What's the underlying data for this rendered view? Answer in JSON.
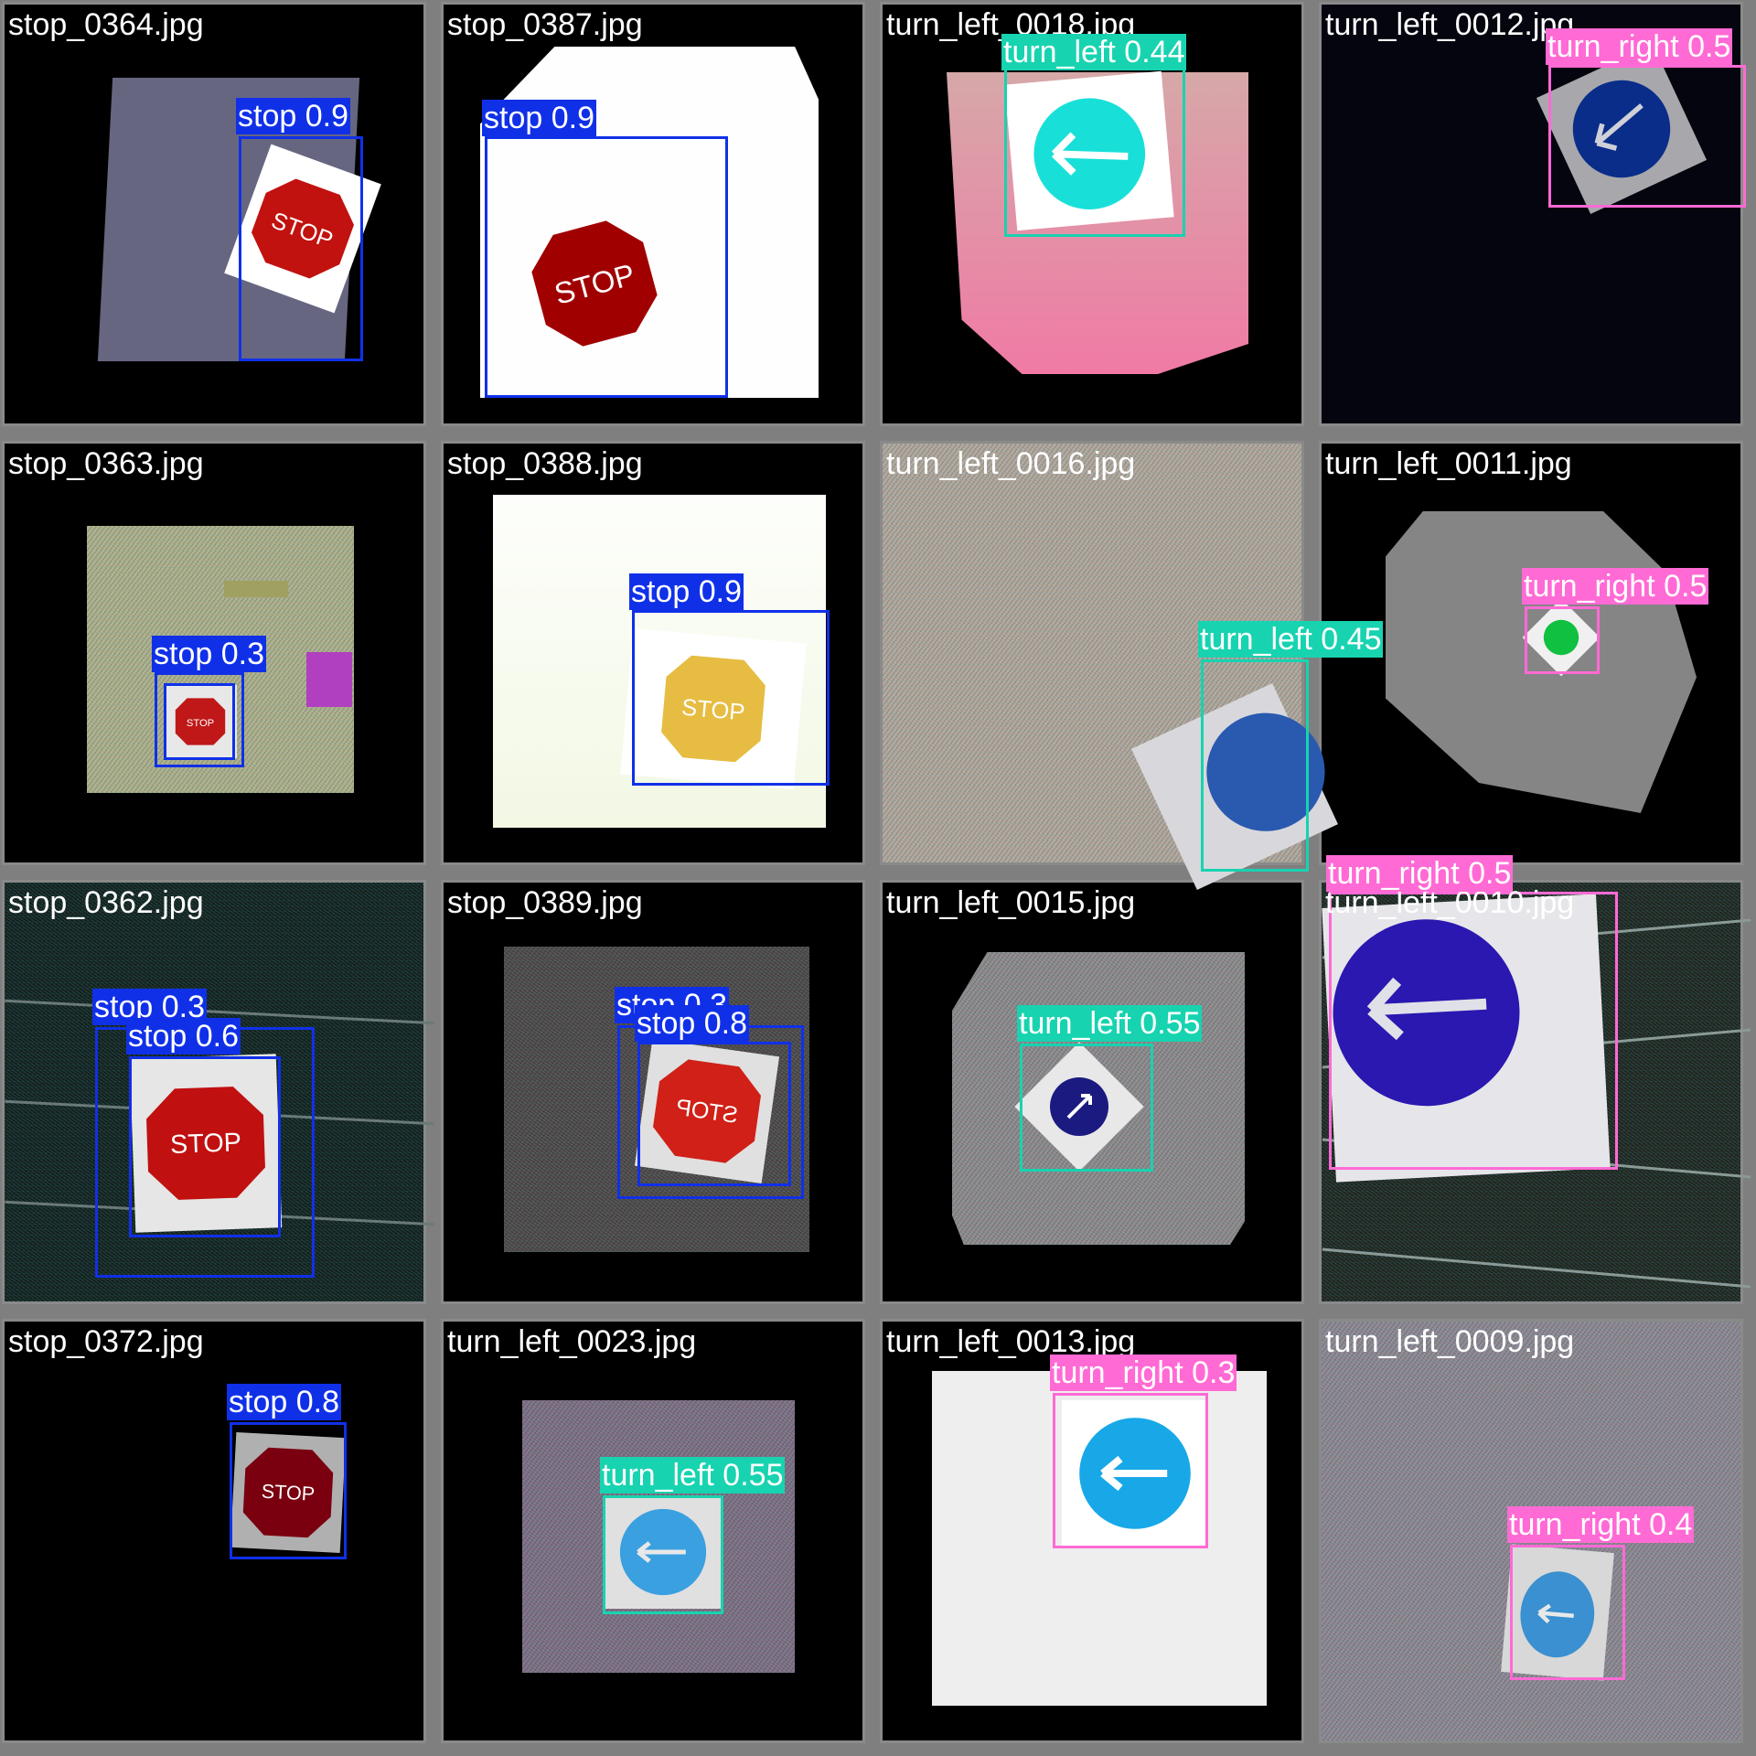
{
  "colors": {
    "stop": "#1030e8",
    "turn_left": "#17d3b0",
    "turn_right": "#ff6ad5",
    "tile_border": "#8a8a8a",
    "label_text": "#ffffff"
  },
  "tiles": [
    {
      "filename": "stop_0364.jpg",
      "detections": [
        {
          "label": "stop 0.9",
          "class": "stop"
        }
      ]
    },
    {
      "filename": "stop_0387.jpg",
      "detections": [
        {
          "label": "stop 0.9",
          "class": "stop"
        }
      ]
    },
    {
      "filename": "turn_left_0018.jpg",
      "detections": [
        {
          "label": "turn_left 0.44",
          "class": "turn_left"
        }
      ]
    },
    {
      "filename": "turn_left_0012.jpg",
      "detections": [
        {
          "label": "turn_right 0.5",
          "class": "turn_right"
        }
      ]
    },
    {
      "filename": "stop_0363.jpg",
      "detections": [
        {
          "label": "stop 0.3",
          "class": "stop"
        },
        {
          "label": "",
          "class": "stop"
        }
      ]
    },
    {
      "filename": "stop_0388.jpg",
      "detections": [
        {
          "label": "stop 0.9",
          "class": "stop"
        }
      ]
    },
    {
      "filename": "turn_left_0016.jpg",
      "detections": [
        {
          "label": "turn_left 0.45",
          "class": "turn_left"
        }
      ]
    },
    {
      "filename": "turn_left_0011.jpg",
      "detections": [
        {
          "label": "turn_right 0.5",
          "class": "turn_right"
        }
      ]
    },
    {
      "filename": "stop_0362.jpg",
      "detections": [
        {
          "label": "stop 0.3",
          "class": "stop"
        },
        {
          "label": "stop 0.6",
          "class": "stop"
        }
      ]
    },
    {
      "filename": "stop_0389.jpg",
      "detections": [
        {
          "label": "stop 0.3",
          "class": "stop"
        },
        {
          "label": "stop 0.8",
          "class": "stop"
        }
      ]
    },
    {
      "filename": "turn_left_0015.jpg",
      "detections": [
        {
          "label": "turn_left 0.55",
          "class": "turn_left"
        }
      ]
    },
    {
      "filename": "turn_left_0010.jpg",
      "detections": [
        {
          "label": "turn_right 0.5",
          "class": "turn_right"
        }
      ]
    },
    {
      "filename": "stop_0372.jpg",
      "detections": [
        {
          "label": "stop 0.8",
          "class": "stop"
        }
      ]
    },
    {
      "filename": "turn_left_0023.jpg",
      "detections": [
        {
          "label": "turn_left 0.55",
          "class": "turn_left"
        }
      ]
    },
    {
      "filename": "turn_left_0013.jpg",
      "detections": [
        {
          "label": "turn_right 0.3",
          "class": "turn_right"
        }
      ]
    },
    {
      "filename": "turn_left_0009.jpg",
      "detections": [
        {
          "label": "turn_right 0.4",
          "class": "turn_right"
        }
      ]
    }
  ],
  "sign_text": "STOP"
}
